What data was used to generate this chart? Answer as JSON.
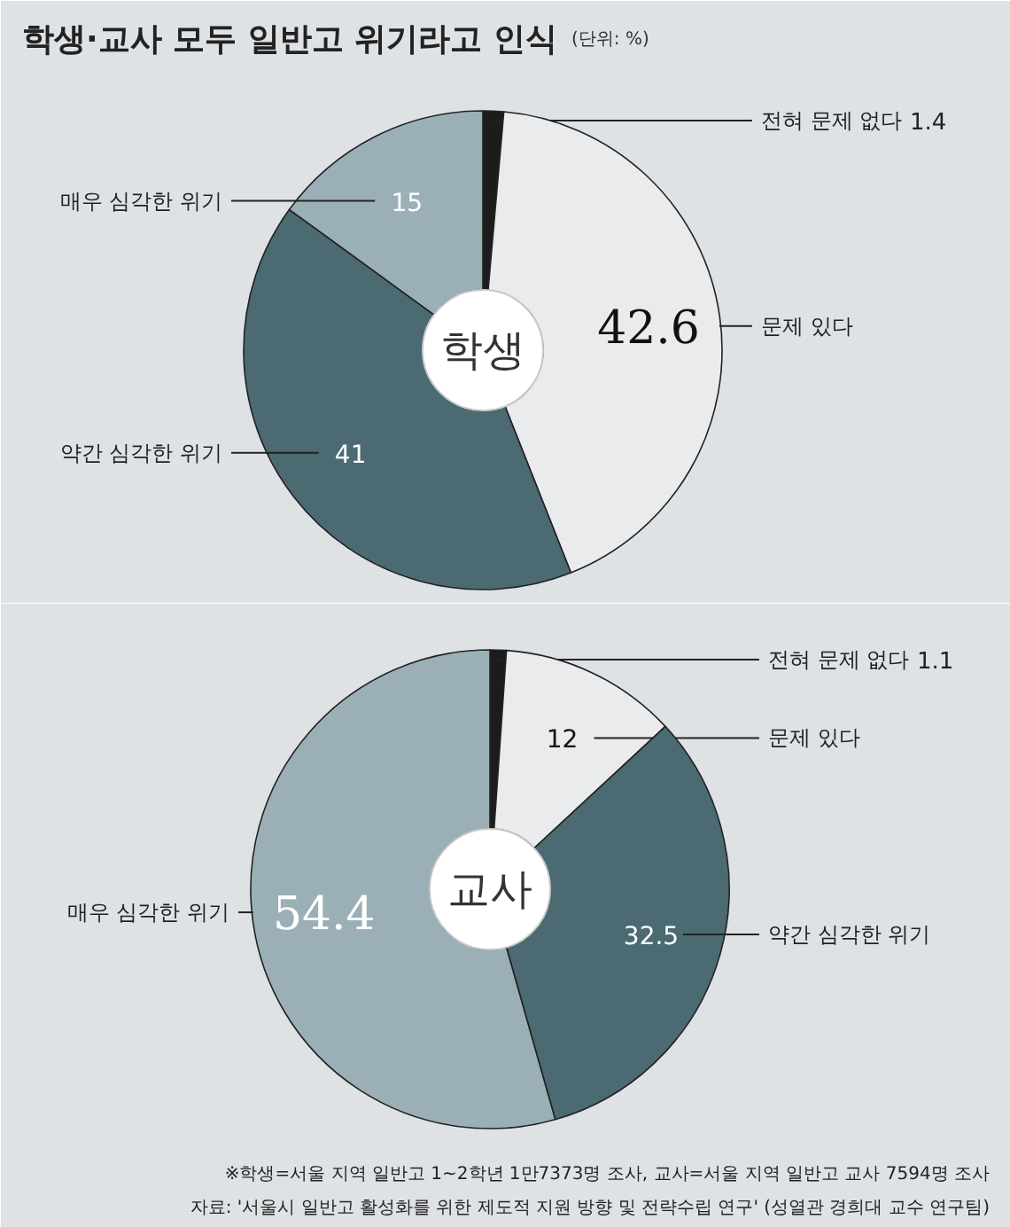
{
  "chart_data": [
    {
      "type": "donut",
      "title": "학생·교사 모두 일반고 위기라고 인식",
      "subtitle": "(단위: %)",
      "categories": [
        "전혀 문제 없다",
        "문제 있다",
        "약간 심각한 위기",
        "매우 심각한 위기"
      ],
      "values": [
        1.4,
        42.6,
        41,
        15
      ],
      "colors": [
        "#1c1c1c",
        "#e9ebed",
        "#4b6a72",
        "#9bb0b6"
      ],
      "data_labels": true,
      "annotations": [
        "학생"
      ]
    },
    {
      "type": "donut",
      "categories": [
        "전혀 문제 없다",
        "문제 있다",
        "약간 심각한 위기",
        "매우 심각한 위기"
      ],
      "values": [
        1.1,
        12,
        32.5,
        54.4
      ],
      "colors": [
        "#1c1c1c",
        "#e9ebed",
        "#4b6a72",
        "#9bb0b6"
      ],
      "data_labels": true,
      "annotations": [
        "교사",
        "※학생=서울 지역 일반고 1~2학년 1만7373명 조사, 교사=서울 지역 일반고 교사 7594명 조사",
        "자료: '서울시 일반고 활성화를 위한 제도적 지원 방향 및 전략수립 연구' (성열관 경희대 교수 연구팀)"
      ]
    }
  ]
}
